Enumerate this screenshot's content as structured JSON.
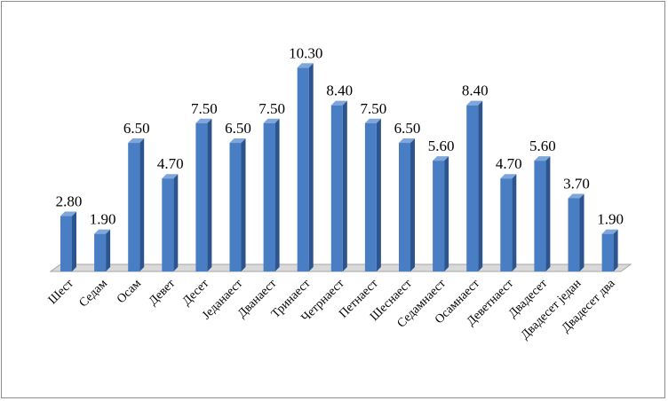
{
  "chart_data": {
    "type": "bar",
    "style": "3d-column",
    "title": "",
    "xlabel": "",
    "ylabel": "",
    "grid": false,
    "legend": "none",
    "ylim": [
      0,
      10.3
    ],
    "categories": [
      "Шест",
      "Седам",
      "Осам",
      "Девет",
      "Десет",
      "Једанаест",
      "Дванаест",
      "Тринаест",
      "Четрнаест",
      "Петнаест",
      "Шеснаест",
      "Седамнаест",
      "Осамнаест",
      "Деветнаест",
      "Двадесет",
      "Двадесет један",
      "Двадесет два"
    ],
    "values": [
      2.8,
      1.9,
      6.5,
      4.7,
      7.5,
      6.5,
      7.5,
      10.3,
      8.4,
      7.5,
      6.5,
      5.6,
      8.4,
      4.7,
      5.6,
      3.7,
      1.9
    ],
    "data_labels": [
      "2.80",
      "1.90",
      "6.50",
      "4.70",
      "7.50",
      "6.50",
      "7.50",
      "10.30",
      "8.40",
      "7.50",
      "6.50",
      "5.60",
      "8.40",
      "4.70",
      "5.60",
      "3.70",
      "1.90"
    ],
    "colors": {
      "bar_front": "#4a7ec4",
      "bar_side": "#2c5590",
      "bar_top": "#7ea6da",
      "floor": "#d9d9d9",
      "border": "#8c8c8c"
    }
  }
}
